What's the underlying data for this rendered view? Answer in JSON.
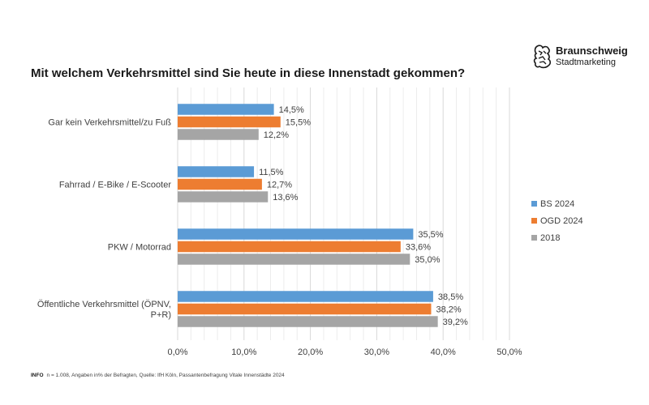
{
  "header": {
    "title": "Mit welchem Verkehrsmittel sind Sie heute in diese Innenstadt gekommen?",
    "logo": {
      "name": "Braunschweig",
      "subtitle": "Stadtmarketing",
      "icon": "lion-crest-icon"
    }
  },
  "footnote": {
    "label": "INFO",
    "text": "n = 1.008, Angaben in% der Befragten, Quelle: IfH Köln, Passantenbefragung Vitale Innenstädte 2024"
  },
  "chart_data": {
    "type": "bar",
    "orientation": "horizontal",
    "categories": [
      [
        "Gar kein Verkehrsmittel/zu Fuß"
      ],
      [
        "Fahrrad / E-Bike / E-Scooter"
      ],
      [
        "PKW / Motorrad"
      ],
      [
        "Öffentliche Verkehrsmittel (ÖPNV,",
        "P+R)"
      ]
    ],
    "series": [
      {
        "name": "BS 2024",
        "color": "#5b9bd5",
        "values": [
          14.5,
          11.5,
          35.5,
          38.5
        ],
        "labels": [
          "14,5%",
          "11,5%",
          "35,5%",
          "38,5%"
        ]
      },
      {
        "name": "OGD 2024",
        "color": "#ed7d31",
        "values": [
          15.5,
          12.7,
          33.6,
          38.2
        ],
        "labels": [
          "15,5%",
          "12,7%",
          "33,6%",
          "38,2%"
        ]
      },
      {
        "name": "2018",
        "color": "#a5a5a5",
        "values": [
          12.2,
          13.6,
          35.0,
          39.2
        ],
        "labels": [
          "12,2%",
          "13,6%",
          "35,0%",
          "39,2%"
        ]
      }
    ],
    "xlim": [
      0,
      50
    ],
    "xticks": [
      0,
      10,
      20,
      30,
      40,
      50
    ],
    "xtick_labels": [
      "0,0%",
      "10,0%",
      "20,0%",
      "30,0%",
      "40,0%",
      "50,0%"
    ],
    "minor_gridlines_step": 2,
    "grid": true,
    "legend": "right"
  }
}
